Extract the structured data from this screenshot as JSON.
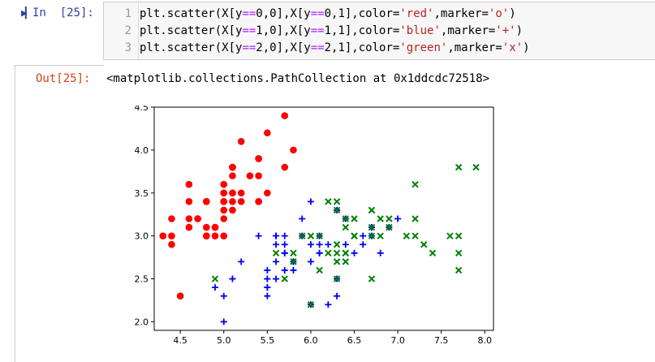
{
  "input_cell": {
    "prompt": "In  [25]:",
    "lines": [
      {
        "num": "1",
        "prefix": "plt.scatter(X[y",
        "op": "==",
        "mid1": "0,0],X[y",
        "op2": "==",
        "mid2": "0,1],color=",
        "s1": "'red'",
        "mid3": ",marker=",
        "s2": "'o'",
        "end": ")"
      },
      {
        "num": "2",
        "prefix": "plt.scatter(X[y",
        "op": "==",
        "mid1": "1,0],X[y",
        "op2": "==",
        "mid2": "1,1],color=",
        "s1": "'blue'",
        "mid3": ",marker=",
        "s2": "'+'",
        "end": ")"
      },
      {
        "num": "3",
        "prefix": "plt.scatter(X[y",
        "op": "==",
        "mid1": "2,0],X[y",
        "op2": "==",
        "mid2": "2,1],color=",
        "s1": "'green'",
        "mid3": ",marker=",
        "s2": "'x'",
        "end": ")"
      }
    ]
  },
  "output_cell": {
    "prompt": "Out[25]:",
    "text": "<matplotlib.collections.PathCollection at 0x1ddcdc72518>"
  },
  "chart_data": {
    "type": "scatter",
    "xlim": [
      4.2,
      8.1
    ],
    "ylim": [
      1.9,
      4.5
    ],
    "xticks": [
      4.5,
      5.0,
      5.5,
      6.0,
      6.5,
      7.0,
      7.5,
      8.0
    ],
    "xtick_labels": [
      "4.5",
      "5.0",
      "5.5",
      "6.0",
      "6.5",
      "7.0",
      "7.5",
      "8.0"
    ],
    "yticks": [
      2.0,
      2.5,
      3.0,
      3.5,
      4.0,
      4.5
    ],
    "ytick_labels": [
      "2.0",
      "2.5",
      "3.0",
      "3.5",
      "4.0",
      "4.5"
    ],
    "series": [
      {
        "color": "#ff0000",
        "marker": "o",
        "points": [
          [
            5.1,
            3.5
          ],
          [
            4.9,
            3.0
          ],
          [
            4.7,
            3.2
          ],
          [
            4.6,
            3.1
          ],
          [
            5.0,
            3.6
          ],
          [
            5.4,
            3.9
          ],
          [
            4.6,
            3.4
          ],
          [
            5.0,
            3.4
          ],
          [
            4.4,
            2.9
          ],
          [
            4.9,
            3.1
          ],
          [
            5.4,
            3.7
          ],
          [
            4.8,
            3.4
          ],
          [
            4.8,
            3.0
          ],
          [
            4.3,
            3.0
          ],
          [
            5.8,
            4.0
          ],
          [
            5.7,
            4.4
          ],
          [
            5.4,
            3.9
          ],
          [
            5.1,
            3.5
          ],
          [
            5.7,
            3.8
          ],
          [
            5.1,
            3.8
          ],
          [
            5.4,
            3.4
          ],
          [
            5.1,
            3.7
          ],
          [
            4.6,
            3.6
          ],
          [
            5.1,
            3.3
          ],
          [
            4.8,
            3.4
          ],
          [
            5.0,
            3.0
          ],
          [
            5.0,
            3.4
          ],
          [
            5.2,
            3.5
          ],
          [
            5.2,
            3.4
          ],
          [
            4.7,
            3.2
          ],
          [
            4.8,
            3.1
          ],
          [
            5.4,
            3.4
          ],
          [
            5.2,
            4.1
          ],
          [
            5.5,
            4.2
          ],
          [
            4.9,
            3.1
          ],
          [
            5.0,
            3.2
          ],
          [
            5.5,
            3.5
          ],
          [
            4.4,
            3.0
          ],
          [
            5.1,
            3.4
          ],
          [
            5.0,
            3.5
          ],
          [
            4.5,
            2.3
          ],
          [
            4.4,
            3.2
          ],
          [
            5.0,
            3.5
          ],
          [
            5.1,
            3.8
          ],
          [
            4.8,
            3.0
          ],
          [
            5.1,
            3.8
          ],
          [
            4.6,
            3.2
          ],
          [
            5.3,
            3.7
          ],
          [
            5.0,
            3.3
          ]
        ]
      },
      {
        "color": "#0000ff",
        "marker": "+",
        "points": [
          [
            7.0,
            3.2
          ],
          [
            6.4,
            3.2
          ],
          [
            6.9,
            3.1
          ],
          [
            5.5,
            2.3
          ],
          [
            6.5,
            2.8
          ],
          [
            5.7,
            2.8
          ],
          [
            6.3,
            3.3
          ],
          [
            4.9,
            2.4
          ],
          [
            6.6,
            2.9
          ],
          [
            5.2,
            2.7
          ],
          [
            5.0,
            2.0
          ],
          [
            5.9,
            3.0
          ],
          [
            6.0,
            2.2
          ],
          [
            6.1,
            2.9
          ],
          [
            5.6,
            2.9
          ],
          [
            6.7,
            3.1
          ],
          [
            5.6,
            3.0
          ],
          [
            5.8,
            2.7
          ],
          [
            6.2,
            2.2
          ],
          [
            5.6,
            2.5
          ],
          [
            5.9,
            3.2
          ],
          [
            6.1,
            2.8
          ],
          [
            6.3,
            2.5
          ],
          [
            6.1,
            2.8
          ],
          [
            6.4,
            2.9
          ],
          [
            6.6,
            3.0
          ],
          [
            6.8,
            2.8
          ],
          [
            6.7,
            3.0
          ],
          [
            6.0,
            2.9
          ],
          [
            5.7,
            2.6
          ],
          [
            5.5,
            2.4
          ],
          [
            5.5,
            2.4
          ],
          [
            5.8,
            2.7
          ],
          [
            6.0,
            2.7
          ],
          [
            5.4,
            3.0
          ],
          [
            6.0,
            3.4
          ],
          [
            6.7,
            3.1
          ],
          [
            6.3,
            2.3
          ],
          [
            5.6,
            3.0
          ],
          [
            5.5,
            2.5
          ],
          [
            5.5,
            2.6
          ],
          [
            6.1,
            3.0
          ],
          [
            5.8,
            2.6
          ],
          [
            5.0,
            2.3
          ],
          [
            5.6,
            2.7
          ],
          [
            5.7,
            3.0
          ],
          [
            5.7,
            2.9
          ],
          [
            6.2,
            2.9
          ],
          [
            5.1,
            2.5
          ],
          [
            5.7,
            2.8
          ]
        ]
      },
      {
        "color": "#008000",
        "marker": "x",
        "points": [
          [
            6.3,
            3.3
          ],
          [
            5.8,
            2.7
          ],
          [
            7.1,
            3.0
          ],
          [
            6.3,
            2.9
          ],
          [
            6.5,
            3.0
          ],
          [
            7.6,
            3.0
          ],
          [
            4.9,
            2.5
          ],
          [
            7.3,
            2.9
          ],
          [
            6.7,
            2.5
          ],
          [
            7.2,
            3.6
          ],
          [
            6.5,
            3.2
          ],
          [
            6.4,
            2.7
          ],
          [
            6.8,
            3.0
          ],
          [
            5.7,
            2.5
          ],
          [
            5.8,
            2.8
          ],
          [
            6.4,
            3.2
          ],
          [
            6.5,
            3.0
          ],
          [
            7.7,
            3.8
          ],
          [
            7.7,
            2.6
          ],
          [
            6.0,
            2.2
          ],
          [
            6.9,
            3.2
          ],
          [
            5.6,
            2.8
          ],
          [
            7.7,
            2.8
          ],
          [
            6.3,
            2.7
          ],
          [
            6.7,
            3.3
          ],
          [
            7.2,
            3.2
          ],
          [
            6.2,
            2.8
          ],
          [
            6.1,
            3.0
          ],
          [
            6.4,
            2.8
          ],
          [
            7.2,
            3.0
          ],
          [
            7.4,
            2.8
          ],
          [
            7.9,
            3.8
          ],
          [
            6.4,
            2.8
          ],
          [
            6.3,
            2.8
          ],
          [
            6.1,
            2.6
          ],
          [
            7.7,
            3.0
          ],
          [
            6.3,
            3.4
          ],
          [
            6.4,
            3.1
          ],
          [
            6.0,
            3.0
          ],
          [
            6.9,
            3.1
          ],
          [
            6.7,
            3.1
          ],
          [
            6.9,
            3.1
          ],
          [
            6.8,
            3.2
          ],
          [
            6.7,
            3.3
          ],
          [
            6.7,
            3.0
          ],
          [
            6.3,
            2.5
          ],
          [
            6.5,
            3.0
          ],
          [
            6.2,
            3.4
          ],
          [
            5.9,
            3.0
          ]
        ]
      }
    ]
  }
}
